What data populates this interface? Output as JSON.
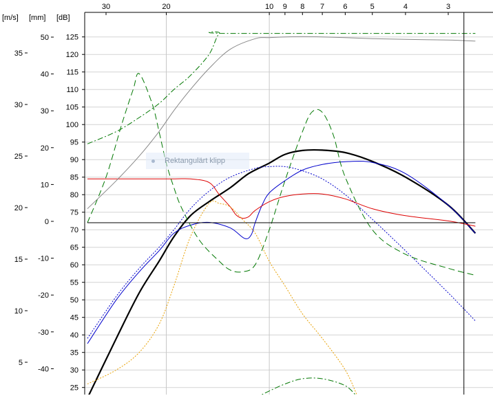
{
  "axes": {
    "velocity_unit": "[m/s]",
    "excursion_unit": "[mm]",
    "spl_unit": "[dB]",
    "velocity_ticks": [
      "35",
      "30",
      "25",
      "20",
      "15",
      "10",
      "5"
    ],
    "excursion_ticks": [
      "50",
      "40",
      "30",
      "20",
      "10",
      "0",
      "-10",
      "-20",
      "-30",
      "-40"
    ],
    "spl_ticks": [
      "125",
      "120",
      "115",
      "110",
      "105",
      "100",
      "95",
      "90",
      "85",
      "80",
      "75",
      "70",
      "65",
      "60",
      "55",
      "50",
      "45",
      "40",
      "35",
      "30",
      "25"
    ],
    "top_ticks": [
      "30",
      "20",
      "10",
      "9",
      "8",
      "7",
      "6",
      "5",
      "4",
      "3"
    ]
  },
  "tooltip": {
    "text": "Rektangulärt klipp"
  },
  "chart_data": {
    "type": "line",
    "title": "",
    "xlabel": "",
    "ylabel": "[dB]",
    "top_axis_ticks": [
      30,
      20,
      10,
      9,
      8,
      7,
      6,
      5,
      4,
      3
    ],
    "ylim_db": [
      22,
      128
    ],
    "grid": true,
    "series": [
      {
        "id": "black-thick",
        "color": "#000000",
        "style": "solid-thick",
        "x": [
          34,
          28,
          24,
          21,
          19,
          17,
          15,
          13,
          11.5,
          10,
          9,
          8,
          7,
          6,
          5,
          4,
          3,
          2.5
        ],
        "y": [
          22,
          39,
          52,
          61,
          68,
          74,
          78,
          82,
          86,
          89,
          91.5,
          92.6,
          92.7,
          92,
          89.5,
          85,
          77,
          69
        ]
      },
      {
        "id": "blue-solid",
        "color": "#0000cc",
        "style": "solid",
        "x": [
          34,
          28,
          24,
          21,
          19,
          17,
          15,
          13,
          11.8,
          11.3,
          11,
          10.5,
          10,
          9,
          8,
          7,
          6,
          5,
          4,
          3,
          2.5
        ],
        "y": [
          37.5,
          50,
          58,
          64,
          69,
          71.3,
          72.1,
          70.5,
          67.5,
          68.5,
          72,
          77,
          80.5,
          84,
          87,
          88.6,
          89.4,
          89.2,
          86,
          77,
          69
        ]
      },
      {
        "id": "blue-dotted",
        "color": "#0000cc",
        "style": "dotted",
        "x": [
          34,
          28,
          24,
          21,
          19,
          17,
          15,
          13,
          11,
          10,
          9,
          8,
          7,
          6,
          5,
          4,
          3,
          2.5
        ],
        "y": [
          39,
          51,
          59,
          65,
          70,
          76,
          81,
          85,
          87.5,
          88,
          88,
          86.8,
          84.5,
          80,
          73,
          64,
          52,
          44
        ]
      },
      {
        "id": "red",
        "color": "#dd0000",
        "style": "solid",
        "x": [
          34,
          24,
          19,
          17,
          15,
          14,
          13,
          12.5,
          12,
          11.5,
          11,
          10,
          9,
          8,
          7,
          6,
          5,
          4,
          3,
          2.5
        ],
        "y": [
          84.5,
          84.5,
          84.5,
          84.5,
          83.5,
          80,
          76.5,
          74.2,
          73.3,
          73.7,
          75.5,
          78,
          79.5,
          80.2,
          80.2,
          78.8,
          76,
          74,
          72.5,
          71
        ]
      },
      {
        "id": "orange-dotted",
        "color": "#e8a000",
        "style": "dotted",
        "x": [
          34,
          28,
          24,
          21,
          19,
          17,
          15,
          14,
          13,
          12,
          11,
          10,
          9,
          8,
          7,
          6,
          5.5
        ],
        "y": [
          26,
          30,
          35,
          43,
          54,
          68,
          77.5,
          77.5,
          76.5,
          73,
          69,
          61,
          54,
          46,
          39,
          30,
          22
        ]
      },
      {
        "id": "green-dashed",
        "color": "#007700",
        "style": "dashed",
        "x": [
          34,
          30,
          27,
          25,
          24,
          22,
          21,
          20,
          19,
          18,
          16,
          14,
          13,
          12,
          11,
          10,
          9,
          8,
          7.5,
          7,
          6.5,
          6,
          5,
          4,
          3,
          2.5
        ],
        "y": [
          72,
          85,
          100,
          110,
          114.5,
          106,
          98,
          89,
          82,
          76,
          67,
          61,
          58.5,
          58,
          60,
          70,
          84,
          98,
          103.6,
          103.5,
          97,
          85,
          70,
          63,
          59,
          57
        ]
      },
      {
        "id": "green-dashdot",
        "color": "#007700",
        "style": "dashdot",
        "x": [
          34,
          28,
          24,
          21,
          19,
          17,
          15,
          14,
          13,
          2.5
        ],
        "y": [
          94.5,
          98,
          102,
          106,
          110,
          114,
          120,
          126,
          126,
          126
        ]
      },
      {
        "id": "green-dashdot-low",
        "color": "#007700",
        "style": "dashdot",
        "x": [
          11,
          10,
          9,
          8,
          7,
          6,
          5.5
        ],
        "y": [
          22,
          24,
          26,
          27.5,
          27.5,
          25.5,
          22
        ]
      },
      {
        "id": "gray",
        "color": "#888888",
        "style": "solid",
        "x": [
          34,
          28,
          24,
          21,
          19,
          17,
          15,
          13,
          11,
          10,
          9,
          8,
          7,
          6,
          5,
          4,
          3,
          2.5
        ],
        "y": [
          76,
          84,
          91,
          98,
          104,
          110,
          116,
          121.5,
          124.5,
          124.8,
          125,
          125.1,
          125,
          124.8,
          124.5,
          124.3,
          124.1,
          123.8
        ]
      },
      {
        "id": "reference",
        "color": "#000000",
        "style": "solid",
        "x": [
          34,
          2.5
        ],
        "y": [
          72,
          72
        ]
      }
    ],
    "vertical_marker_x": 2.7
  }
}
